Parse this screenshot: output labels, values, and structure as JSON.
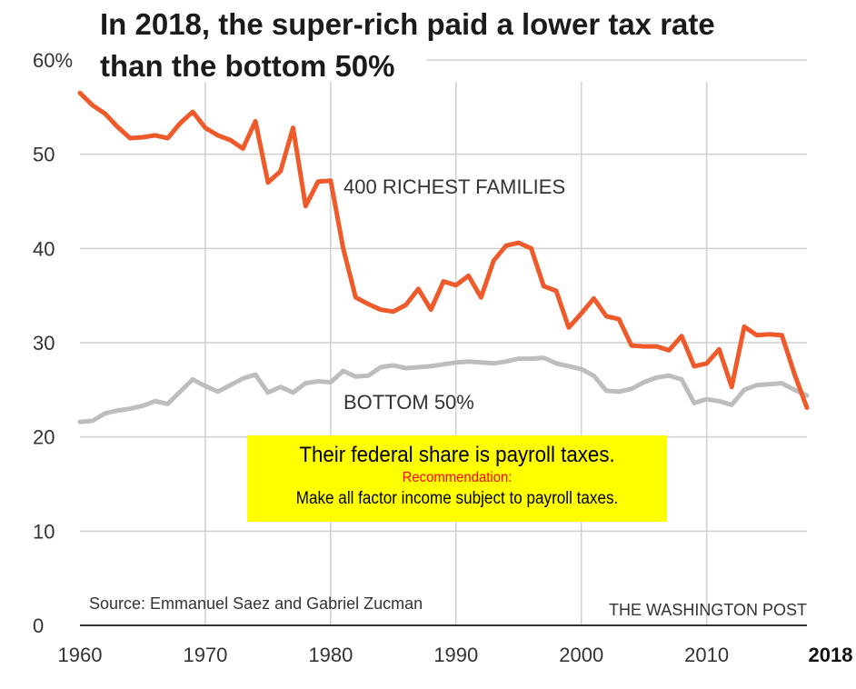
{
  "title_line1": "In 2018, the super-rich paid a lower tax rate",
  "title_line2": "than the bottom 50%",
  "callout": {
    "main": "Their federal share is payroll taxes.",
    "recommendation": "Recommendation:",
    "body": "Make all factor income subject to payroll taxes."
  },
  "source": "Source: Emmanuel Saez and Gabriel Zucman",
  "publisher": "THE WASHINGTON POST",
  "colors": {
    "richest": "#ee5a2a",
    "bottom": "#bdbdbd",
    "grid": "#cfcfcf",
    "highlight": "#ffff00"
  },
  "chart_data": {
    "type": "line",
    "xlim": [
      1960,
      2018
    ],
    "ylim": [
      0,
      60
    ],
    "x_ticks": [
      1960,
      1970,
      1980,
      1990,
      2000,
      2010,
      2018
    ],
    "x_tick_labels": [
      "1960",
      "1970",
      "1980",
      "1990",
      "2000",
      "2010",
      "2018"
    ],
    "y_ticks": [
      0,
      10,
      20,
      30,
      40,
      50,
      60
    ],
    "y_tick_labels": [
      "0",
      "10",
      "20",
      "30",
      "40",
      "50",
      "60%"
    ],
    "grid": true,
    "series": [
      {
        "name": "400 RICHEST FAMILIES",
        "x": [
          1960,
          1961,
          1962,
          1963,
          1964,
          1965,
          1966,
          1967,
          1968,
          1969,
          1970,
          1971,
          1972,
          1973,
          1974,
          1975,
          1976,
          1977,
          1978,
          1979,
          1980,
          1981,
          1982,
          1983,
          1984,
          1985,
          1986,
          1987,
          1988,
          1989,
          1990,
          1991,
          1992,
          1993,
          1994,
          1995,
          1996,
          1997,
          1998,
          1999,
          2000,
          2001,
          2002,
          2003,
          2004,
          2005,
          2006,
          2007,
          2008,
          2009,
          2010,
          2011,
          2012,
          2013,
          2014,
          2015,
          2016,
          2017,
          2018
        ],
        "values": [
          56.5,
          55.2,
          54.3,
          52.9,
          51.7,
          51.8,
          52.0,
          51.7,
          53.3,
          54.5,
          52.8,
          52.0,
          51.5,
          50.6,
          53.5,
          47.0,
          48.2,
          52.8,
          44.5,
          47.1,
          47.2,
          40.0,
          34.8,
          34.1,
          33.5,
          33.3,
          34.0,
          35.7,
          33.5,
          36.5,
          36.1,
          37.1,
          34.8,
          38.7,
          40.3,
          40.6,
          40.0,
          36.0,
          35.5,
          31.6,
          33.1,
          34.7,
          32.8,
          32.5,
          29.7,
          29.6,
          29.6,
          29.2,
          30.7,
          27.5,
          27.8,
          29.3,
          25.3,
          31.7,
          30.8,
          30.9,
          30.8,
          26.7,
          23.1
        ]
      },
      {
        "name": "BOTTOM 50%",
        "x": [
          1960,
          1961,
          1962,
          1963,
          1964,
          1965,
          1966,
          1967,
          1968,
          1969,
          1970,
          1971,
          1972,
          1973,
          1974,
          1975,
          1976,
          1977,
          1978,
          1979,
          1980,
          1981,
          1982,
          1983,
          1984,
          1985,
          1986,
          1987,
          1988,
          1989,
          1990,
          1991,
          1992,
          1993,
          1994,
          1995,
          1996,
          1997,
          1998,
          1999,
          2000,
          2001,
          2002,
          2003,
          2004,
          2005,
          2006,
          2007,
          2008,
          2009,
          2010,
          2011,
          2012,
          2013,
          2014,
          2015,
          2016,
          2017,
          2018
        ],
        "values": [
          21.6,
          21.7,
          22.5,
          22.8,
          23.0,
          23.3,
          23.8,
          23.5,
          24.8,
          26.1,
          25.4,
          24.8,
          25.5,
          26.2,
          26.6,
          24.7,
          25.3,
          24.7,
          25.7,
          25.9,
          25.8,
          27.0,
          26.4,
          26.5,
          27.4,
          27.6,
          27.3,
          27.4,
          27.5,
          27.7,
          27.9,
          28.0,
          27.9,
          27.8,
          28.0,
          28.3,
          28.3,
          28.4,
          27.8,
          27.5,
          27.2,
          26.5,
          24.9,
          24.8,
          25.1,
          25.8,
          26.3,
          26.5,
          26.1,
          23.6,
          24.0,
          23.8,
          23.4,
          25.0,
          25.5,
          25.6,
          25.7,
          25.0,
          24.4
        ]
      }
    ]
  }
}
